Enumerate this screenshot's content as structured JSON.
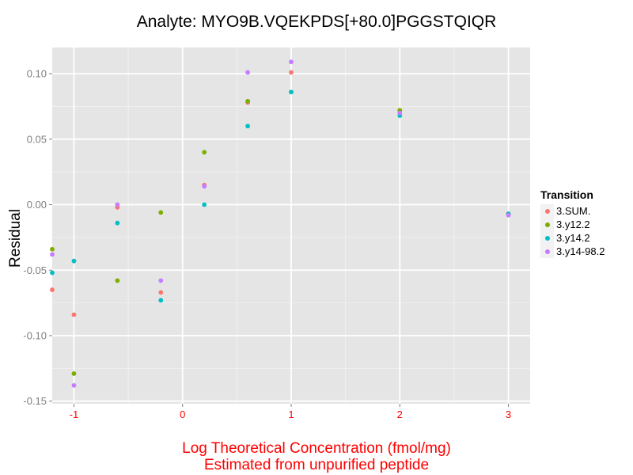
{
  "chart_data": {
    "type": "scatter",
    "title": "Analyte: MYO9B.VQEKPDS[+80.0]PGGSTQIQR",
    "xlabel_line1": "Log Theoretical Concentration (fmol/mg)",
    "xlabel_line2": "Estimated from unpurified peptide",
    "ylabel": "Residual",
    "xlim": [
      -1.2,
      3.2
    ],
    "ylim": [
      -0.152,
      0.12
    ],
    "x_ticks": [
      -1,
      0,
      1,
      2,
      3
    ],
    "x_tick_labels": [
      "-1",
      "0",
      "1",
      "2",
      "3"
    ],
    "y_ticks": [
      -0.15,
      -0.1,
      -0.05,
      0.0,
      0.05,
      0.1
    ],
    "y_tick_labels": [
      "-0.15",
      "-0.10",
      "-0.05",
      "0.00",
      "0.05",
      "0.10"
    ],
    "grid": true,
    "legend_position": "right",
    "legend_title": "Transition",
    "series": [
      {
        "name": "3.SUM.",
        "color": "#F8766D",
        "points": [
          [
            -1.2,
            -0.065
          ],
          [
            -1.0,
            -0.084
          ],
          [
            -0.6,
            -0.002
          ],
          [
            -0.2,
            -0.067
          ],
          [
            0.2,
            0.015
          ],
          [
            0.6,
            0.078
          ],
          [
            1.0,
            0.101
          ],
          [
            2.0,
            0.072
          ],
          [
            3.0,
            -0.007
          ]
        ]
      },
      {
        "name": "3.y12.2",
        "color": "#7CAE00",
        "points": [
          [
            -1.2,
            -0.034
          ],
          [
            -1.0,
            -0.129
          ],
          [
            -0.6,
            -0.058
          ],
          [
            -0.2,
            -0.006
          ],
          [
            0.2,
            0.04
          ],
          [
            0.6,
            0.079
          ],
          [
            1.0,
            0.086
          ],
          [
            2.0,
            0.072
          ],
          [
            3.0,
            -0.007
          ]
        ]
      },
      {
        "name": "3.y14.2",
        "color": "#00BFC4",
        "points": [
          [
            -1.2,
            -0.052
          ],
          [
            -1.0,
            -0.043
          ],
          [
            -0.6,
            -0.014
          ],
          [
            -0.2,
            -0.073
          ],
          [
            0.2,
            0.0
          ],
          [
            0.6,
            0.06
          ],
          [
            1.0,
            0.086
          ],
          [
            2.0,
            0.068
          ],
          [
            3.0,
            -0.007
          ]
        ]
      },
      {
        "name": "3.y14-98.2",
        "color": "#C77CFF",
        "points": [
          [
            -1.2,
            -0.038
          ],
          [
            -1.0,
            -0.138
          ],
          [
            -0.6,
            0.0
          ],
          [
            -0.2,
            -0.058
          ],
          [
            0.2,
            0.014
          ],
          [
            0.6,
            0.101
          ],
          [
            1.0,
            0.109
          ],
          [
            2.0,
            0.07
          ],
          [
            3.0,
            -0.008
          ]
        ]
      }
    ]
  }
}
